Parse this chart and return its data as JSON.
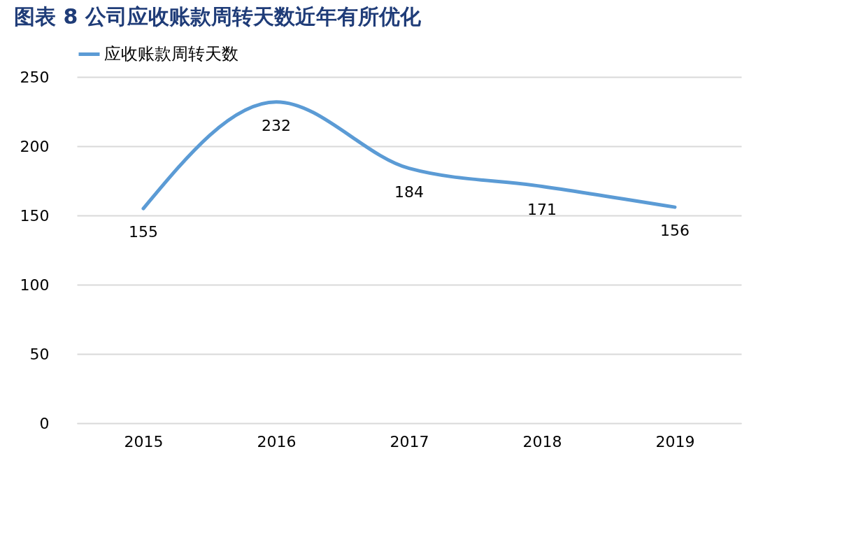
{
  "chart_data": {
    "type": "line",
    "title": "图表 8   公司应收账款周转天数近年有所优化",
    "categories": [
      "2015",
      "2016",
      "2017",
      "2018",
      "2019"
    ],
    "series": [
      {
        "name": "应收账款周转天数",
        "color": "#5b9bd5",
        "values": [
          155,
          232,
          184,
          171,
          156
        ]
      }
    ],
    "ylim": [
      0,
      250
    ],
    "yticks": [
      0,
      50,
      100,
      150,
      200,
      250
    ],
    "grid": "y",
    "legend": "top",
    "data_labels": true
  }
}
